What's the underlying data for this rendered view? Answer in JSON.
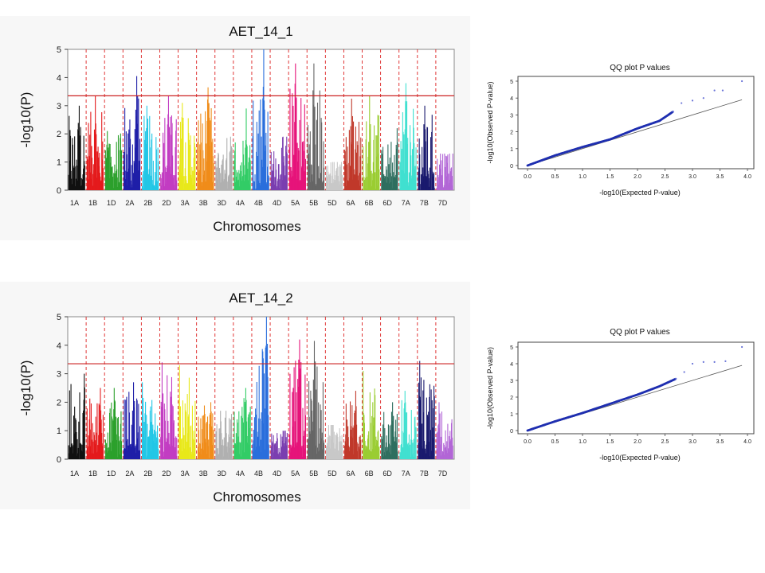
{
  "chart_data": [
    {
      "type": "scatter",
      "subtype": "manhattan",
      "title": "AET_14_1",
      "xlabel": "Chromosomes",
      "ylabel": "-log10(P)",
      "ylim": [
        0,
        5
      ],
      "yticks": [
        0,
        1,
        2,
        3,
        4,
        5
      ],
      "threshold": 3.35,
      "threshold_color": "#cc2222",
      "categories": [
        "1A",
        "1B",
        "1D",
        "2A",
        "2B",
        "2D",
        "3A",
        "3B",
        "3D",
        "4A",
        "4B",
        "4D",
        "5A",
        "5B",
        "5D",
        "6A",
        "6B",
        "6D",
        "7A",
        "7B",
        "7D"
      ],
      "colors": [
        "#111111",
        "#e41a1c",
        "#2ca02c",
        "#1f1fa8",
        "#22c7e6",
        "#c23cc2",
        "#e8e81a",
        "#f08c1a",
        "#b0b0b0",
        "#33cc66",
        "#2a6edc",
        "#7b3fb0",
        "#e6147a",
        "#666666",
        "#c8c8c8",
        "#c0392b",
        "#9acd32",
        "#2f6f5f",
        "#40e0d0",
        "#1a1a6e",
        "#b266d6"
      ],
      "peaks": [
        3.0,
        3.35,
        2.1,
        4.05,
        3.0,
        3.35,
        3.1,
        3.65,
        1.9,
        2.9,
        5.0,
        1.9,
        4.5,
        4.5,
        1.0,
        3.25,
        3.35,
        2.2,
        3.8,
        3.0,
        1.3
      ]
    },
    {
      "type": "scatter",
      "subtype": "qq",
      "title": "QQ plot P values",
      "xlabel": "-log10(Expected P-value)",
      "ylabel": "-log10(Observed P-value)",
      "xlim": [
        0,
        4
      ],
      "ylim": [
        0,
        5
      ],
      "xticks": [
        0.0,
        0.5,
        1.0,
        1.5,
        2.0,
        2.5,
        3.0,
        3.5,
        4.0
      ],
      "yticks": [
        0,
        1,
        2,
        3,
        4,
        5
      ],
      "points": [
        [
          0.0,
          0.0
        ],
        [
          0.5,
          0.6
        ],
        [
          1.0,
          1.1
        ],
        [
          1.5,
          1.55
        ],
        [
          2.0,
          2.2
        ],
        [
          2.4,
          2.65
        ],
        [
          2.65,
          3.2
        ],
        [
          2.8,
          3.7
        ],
        [
          3.0,
          3.85
        ],
        [
          3.2,
          4.0
        ],
        [
          3.4,
          4.45
        ],
        [
          3.55,
          4.45
        ],
        [
          3.9,
          5.0
        ]
      ],
      "reference_line": [
        [
          0,
          0
        ],
        [
          3.9,
          3.9
        ]
      ]
    },
    {
      "type": "scatter",
      "subtype": "manhattan",
      "title": "AET_14_2",
      "xlabel": "Chromosomes",
      "ylabel": "-log10(P)",
      "ylim": [
        0,
        5
      ],
      "yticks": [
        0,
        1,
        2,
        3,
        4,
        5
      ],
      "threshold": 3.35,
      "threshold_color": "#cc2222",
      "categories": [
        "1A",
        "1B",
        "1D",
        "2A",
        "2B",
        "2D",
        "3A",
        "3B",
        "3D",
        "4A",
        "4B",
        "4D",
        "5A",
        "5B",
        "5D",
        "6A",
        "6B",
        "6D",
        "7A",
        "7B",
        "7D"
      ],
      "colors": [
        "#111111",
        "#e41a1c",
        "#2ca02c",
        "#1f1fa8",
        "#22c7e6",
        "#c23cc2",
        "#e8e81a",
        "#f08c1a",
        "#b0b0b0",
        "#33cc66",
        "#2a6edc",
        "#7b3fb0",
        "#e6147a",
        "#666666",
        "#c8c8c8",
        "#c0392b",
        "#9acd32",
        "#2f6f5f",
        "#40e0d0",
        "#1a1a6e",
        "#b266d6"
      ],
      "peaks": [
        3.0,
        2.5,
        2.5,
        2.7,
        2.7,
        3.4,
        3.3,
        2.0,
        1.7,
        2.5,
        5.0,
        1.0,
        4.2,
        4.15,
        1.2,
        2.4,
        3.1,
        2.0,
        2.4,
        3.45,
        2.0
      ]
    },
    {
      "type": "scatter",
      "subtype": "qq",
      "title": "QQ plot P values",
      "xlabel": "-log10(Expected P-value)",
      "ylabel": "-log10(Observed P-value)",
      "xlim": [
        0,
        4
      ],
      "ylim": [
        0,
        5
      ],
      "xticks": [
        0.0,
        0.5,
        1.0,
        1.5,
        2.0,
        2.5,
        3.0,
        3.5,
        4.0
      ],
      "yticks": [
        0,
        1,
        2,
        3,
        4,
        5
      ],
      "points": [
        [
          0.0,
          0.0
        ],
        [
          0.5,
          0.55
        ],
        [
          1.0,
          1.05
        ],
        [
          1.5,
          1.6
        ],
        [
          2.0,
          2.15
        ],
        [
          2.4,
          2.65
        ],
        [
          2.7,
          3.1
        ],
        [
          2.85,
          3.5
        ],
        [
          3.0,
          4.0
        ],
        [
          3.2,
          4.1
        ],
        [
          3.4,
          4.1
        ],
        [
          3.6,
          4.15
        ],
        [
          3.9,
          5.0
        ]
      ],
      "reference_line": [
        [
          0,
          0
        ],
        [
          3.9,
          3.9
        ]
      ]
    }
  ]
}
